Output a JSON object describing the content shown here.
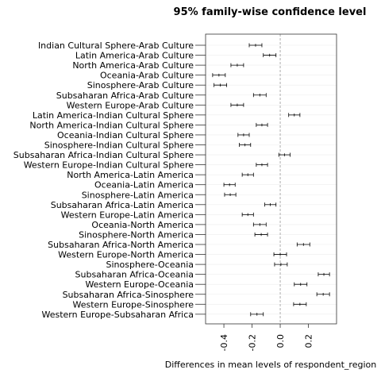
{
  "chart_data": {
    "type": "errorbar",
    "title": "95% family-wise confidence level",
    "xlabel": "Differences in mean levels of respondent_region",
    "ylabel": "",
    "xlim": [
      -0.53,
      0.4
    ],
    "xticks": [
      {
        "value": -0.4,
        "label": "-0.4"
      },
      {
        "value": -0.2,
        "label": "-0.2"
      },
      {
        "value": 0.0,
        "label": "0.0"
      },
      {
        "value": 0.2,
        "label": "0.2"
      }
    ],
    "reference_line": 0,
    "grid": false,
    "rows": [
      {
        "label": "Indian Cultural Sphere-Arab Culture",
        "diff": -0.175,
        "lwr": -0.22,
        "upr": -0.13
      },
      {
        "label": "Latin America-Arab Culture",
        "diff": -0.075,
        "lwr": -0.12,
        "upr": -0.03
      },
      {
        "label": "North America-Arab Culture",
        "diff": -0.305,
        "lwr": -0.35,
        "upr": -0.26
      },
      {
        "label": "Oceania-Arab Culture",
        "diff": -0.435,
        "lwr": -0.48,
        "upr": -0.39
      },
      {
        "label": "Sinosphere-Arab Culture",
        "diff": -0.425,
        "lwr": -0.47,
        "upr": -0.38
      },
      {
        "label": "Subsaharan Africa-Arab Culture",
        "diff": -0.145,
        "lwr": -0.19,
        "upr": -0.1
      },
      {
        "label": "Western Europe-Arab Culture",
        "diff": -0.305,
        "lwr": -0.35,
        "upr": -0.26
      },
      {
        "label": "Latin America-Indian Cultural Sphere",
        "diff": 0.1,
        "lwr": 0.06,
        "upr": 0.14
      },
      {
        "label": "North America-Indian Cultural Sphere",
        "diff": -0.13,
        "lwr": -0.17,
        "upr": -0.09
      },
      {
        "label": "Oceania-Indian Cultural Sphere",
        "diff": -0.26,
        "lwr": -0.3,
        "upr": -0.22
      },
      {
        "label": "Sinosphere-Indian Cultural Sphere",
        "diff": -0.25,
        "lwr": -0.29,
        "upr": -0.21
      },
      {
        "label": "Subsaharan Africa-Indian Cultural Sphere",
        "diff": 0.03,
        "lwr": -0.01,
        "upr": 0.07
      },
      {
        "label": "Western Europe-Indian Cultural Sphere",
        "diff": -0.13,
        "lwr": -0.17,
        "upr": -0.09
      },
      {
        "label": "North America-Latin America",
        "diff": -0.23,
        "lwr": -0.27,
        "upr": -0.19
      },
      {
        "label": "Oceania-Latin America",
        "diff": -0.36,
        "lwr": -0.4,
        "upr": -0.32
      },
      {
        "label": "Sinosphere-Latin America",
        "diff": -0.355,
        "lwr": -0.395,
        "upr": -0.315
      },
      {
        "label": "Subsaharan Africa-Latin America",
        "diff": -0.07,
        "lwr": -0.11,
        "upr": -0.03
      },
      {
        "label": "Western Europe-Latin America",
        "diff": -0.23,
        "lwr": -0.27,
        "upr": -0.19
      },
      {
        "label": "Oceania-North America",
        "diff": -0.145,
        "lwr": -0.19,
        "upr": -0.1
      },
      {
        "label": "Sinosphere-North America",
        "diff": -0.135,
        "lwr": -0.18,
        "upr": -0.09
      },
      {
        "label": "Subsaharan Africa-North America",
        "diff": 0.165,
        "lwr": 0.12,
        "upr": 0.21
      },
      {
        "label": "Western Europe-North America",
        "diff": 0.0,
        "lwr": -0.045,
        "upr": 0.045
      },
      {
        "label": "Sinosphere-Oceania",
        "diff": 0.005,
        "lwr": -0.04,
        "upr": 0.05
      },
      {
        "label": "Subsaharan Africa-Oceania",
        "diff": 0.31,
        "lwr": 0.27,
        "upr": 0.35
      },
      {
        "label": "Western Europe-Oceania",
        "diff": 0.145,
        "lwr": 0.1,
        "upr": 0.19
      },
      {
        "label": "Subsaharan Africa-Sinosphere",
        "diff": 0.305,
        "lwr": 0.26,
        "upr": 0.35
      },
      {
        "label": "Western Europe-Sinosphere",
        "diff": 0.14,
        "lwr": 0.095,
        "upr": 0.185
      },
      {
        "label": "Western Europe-Subsaharan Africa",
        "diff": -0.165,
        "lwr": -0.21,
        "upr": -0.12
      }
    ]
  }
}
